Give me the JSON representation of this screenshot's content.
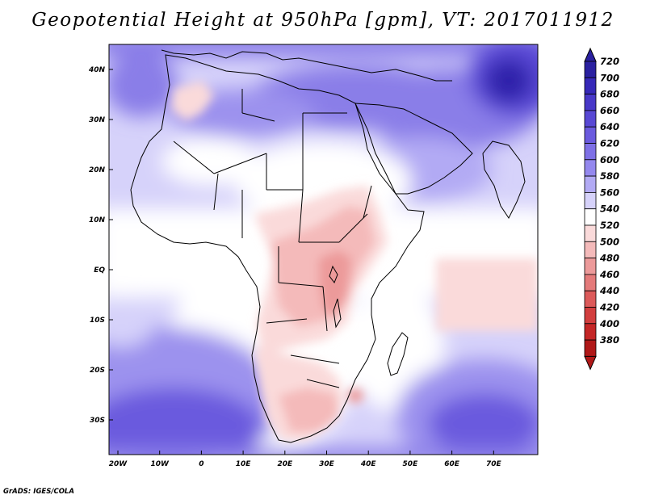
{
  "title": "Geopotential Height at 950hPa [gpm], VT: 2017011912",
  "credit": "GrADS: IGES/COLA",
  "map": {
    "lat_ticks": [
      "40N",
      "30N",
      "20N",
      "10N",
      "EQ",
      "10S",
      "20S",
      "30S"
    ],
    "lon_ticks": [
      "20W",
      "10W",
      "0",
      "10E",
      "20E",
      "30E",
      "40E",
      "50E",
      "60E",
      "70E"
    ]
  },
  "colorbar": {
    "labels": [
      "720",
      "700",
      "680",
      "660",
      "640",
      "620",
      "600",
      "580",
      "560",
      "540",
      "520",
      "500",
      "480",
      "460",
      "440",
      "420",
      "400",
      "380"
    ],
    "colors": [
      "#2a20a0",
      "#3628b8",
      "#4838c8",
      "#5848d4",
      "#6a5ade",
      "#7e70e6",
      "#9488ee",
      "#b2aaf4",
      "#d6d2fa",
      "#ffffff",
      "#fadada",
      "#f4baba",
      "#ec9a9a",
      "#e47a7a",
      "#dc5a5a",
      "#d23e3e",
      "#c42626",
      "#b01818"
    ]
  },
  "colors": {
    "background_field": "#d6d2fa",
    "coastline": "#000000"
  }
}
